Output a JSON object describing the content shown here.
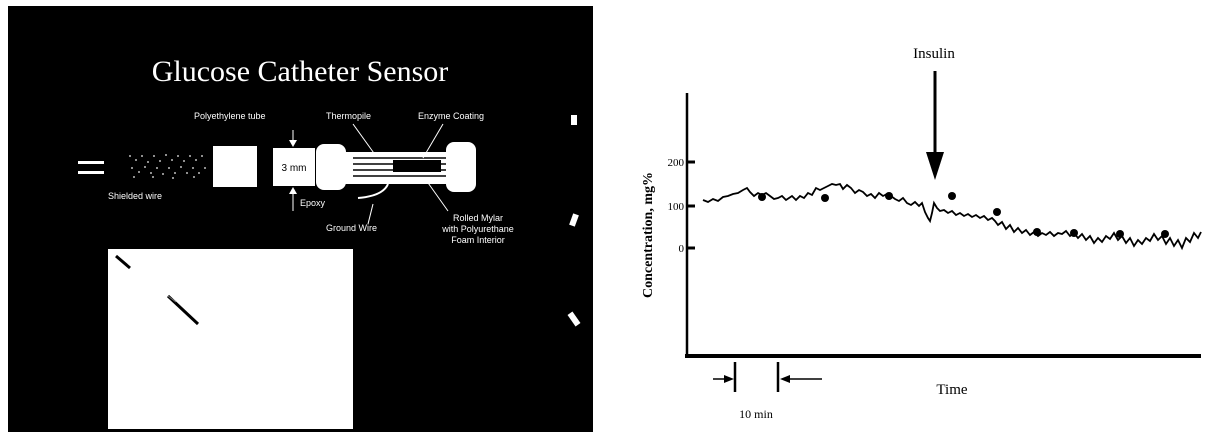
{
  "left_panel": {
    "title": "Glucose Catheter Sensor",
    "labels": {
      "polyethylene_tube": "Polyethylene tube",
      "thermopile": "Thermopile",
      "enzyme_coating": "Enzyme Coating",
      "dimension": "3 mm",
      "shielded_wire": "Shielded wire",
      "epoxy": "Epoxy",
      "ground_wire": "Ground Wire",
      "rolled_mylar_1": "Rolled Mylar",
      "rolled_mylar_2": "with Polyurethane",
      "rolled_mylar_3": "Foam Interior"
    },
    "colors": {
      "background": "#000000",
      "foreground": "#ffffff"
    }
  },
  "right_panel": {
    "annotation": "Insulin",
    "y_axis_label": "Concentration, mg%",
    "x_axis_label": "Time",
    "scale_bar_label": "10 min",
    "y_ticks": [
      "200",
      "100",
      "0"
    ]
  }
}
